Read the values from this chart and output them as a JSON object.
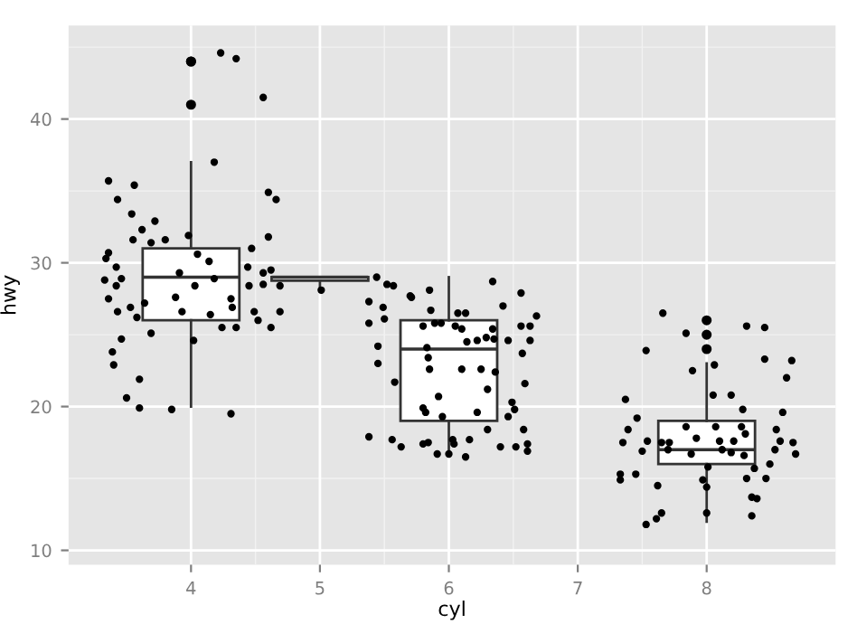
{
  "chart_data": {
    "type": "box",
    "xlabel": "cyl",
    "ylabel": "hwy",
    "x": [
      4,
      5,
      6,
      8
    ],
    "boxes": [
      {
        "low": 20,
        "q1": 26,
        "median": 29,
        "q3": 31,
        "high": 37,
        "outliers": [
          44,
          44,
          41
        ]
      },
      {
        "low": 28,
        "q1": 28.75,
        "median": 29,
        "q3": 29,
        "high": 29
      },
      {
        "low": 17,
        "q1": 19,
        "median": 24,
        "q3": 26,
        "high": 29
      },
      {
        "low": 12,
        "q1": 16,
        "median": 17,
        "q3": 19,
        "high": 23,
        "outliers": [
          26,
          25,
          24
        ]
      }
    ],
    "color": "#333333",
    "series": [
      {
        "type": "scatter",
        "color": "#000000",
        "x": [
          4.23,
          4.35,
          4.56,
          4.18,
          3.36,
          3.56,
          3.43,
          4.6,
          4.66,
          3.54,
          3.62,
          3.72,
          3.55,
          3.8,
          3.69,
          4.6,
          3.98,
          3.36,
          3.34,
          4.05,
          4.14,
          4.47,
          3.42,
          3.33,
          3.46,
          3.91,
          4.18,
          4.44,
          4.56,
          4.62,
          4.03,
          3.36,
          3.42,
          3.64,
          3.88,
          4.31,
          4.45,
          4.56,
          4.69,
          3.43,
          3.53,
          3.93,
          4.15,
          4.32,
          4.49,
          4.69,
          3.58,
          4.52,
          4.24,
          4.35,
          4.62,
          3.69,
          3.46,
          4.02,
          3.39,
          3.4,
          3.6,
          3.5,
          3.6,
          3.85,
          4.31,
          5.01,
          5.38,
          5.44,
          5.52,
          5.57,
          5.49,
          5.38,
          5.5,
          5.7,
          5.45,
          5.45,
          5.58,
          5.38,
          5.56,
          5.63,
          5.71,
          5.85,
          6.34,
          6.56,
          6.42,
          5.86,
          6.07,
          6.13,
          6.68,
          5.8,
          5.89,
          5.94,
          6.05,
          6.1,
          6.34,
          6.56,
          6.63,
          6.22,
          6.29,
          6.46,
          6.63,
          6.14,
          6.35,
          5.83,
          6.57,
          5.84,
          5.85,
          6.1,
          6.25,
          6.36,
          6.59,
          6.3,
          5.92,
          5.8,
          5.82,
          6.22,
          6.49,
          6.51,
          5.95,
          6.46,
          6.3,
          6.58,
          6.03,
          6.04,
          6.16,
          5.8,
          5.84,
          5.91,
          6.0,
          6.13,
          6.4,
          6.52,
          6.61,
          6.61,
          7.66,
          8.31,
          8.45,
          7.84,
          7.53,
          8.06,
          8.45,
          8.66,
          7.89,
          8.62,
          8.05,
          8.19,
          7.37,
          8.28,
          8.59,
          7.46,
          7.39,
          7.84,
          8.07,
          8.27,
          8.54,
          7.92,
          8.3,
          7.35,
          7.54,
          7.65,
          7.71,
          8.1,
          8.21,
          8.57,
          8.67,
          7.5,
          7.7,
          7.88,
          8.12,
          8.19,
          8.29,
          8.53,
          8.69,
          8.01,
          8.37,
          8.49,
          7.33,
          7.45,
          7.33,
          7.97,
          8.31,
          8.46,
          8.0,
          7.62,
          8.35,
          8.39,
          7.65,
          7.61,
          7.53,
          8.0,
          8.35
        ],
        "values": [
          44.6,
          44.2,
          41.5,
          37.0,
          35.7,
          35.4,
          34.4,
          34.9,
          34.4,
          33.4,
          32.3,
          32.9,
          31.6,
          31.6,
          31.4,
          31.8,
          31.9,
          30.7,
          30.3,
          30.6,
          30.1,
          31.0,
          29.7,
          28.8,
          28.9,
          29.3,
          28.9,
          29.7,
          29.3,
          29.5,
          28.4,
          27.5,
          28.4,
          27.2,
          27.6,
          27.5,
          28.4,
          28.5,
          28.4,
          26.6,
          26.9,
          26.6,
          26.4,
          26.9,
          26.6,
          26.6,
          26.2,
          26.0,
          25.5,
          25.5,
          25.5,
          25.1,
          24.7,
          24.6,
          23.8,
          22.9,
          21.9,
          20.6,
          19.9,
          19.8,
          19.5,
          28.1,
          27.3,
          29.0,
          28.5,
          28.4,
          26.9,
          25.8,
          26.1,
          27.7,
          24.2,
          23.0,
          21.7,
          17.9,
          17.7,
          17.2,
          27.6,
          28.1,
          28.7,
          27.9,
          27.0,
          26.7,
          26.5,
          26.5,
          26.3,
          25.6,
          25.8,
          25.8,
          25.6,
          25.4,
          25.4,
          25.6,
          25.6,
          24.6,
          24.8,
          24.6,
          24.6,
          24.5,
          24.7,
          24.1,
          23.7,
          23.4,
          22.6,
          22.6,
          22.6,
          22.4,
          21.6,
          21.2,
          20.7,
          19.9,
          19.6,
          19.6,
          20.3,
          19.8,
          19.3,
          19.3,
          18.4,
          18.4,
          17.7,
          17.4,
          17.7,
          17.4,
          17.5,
          16.7,
          16.7,
          16.5,
          17.2,
          17.2,
          17.4,
          16.9,
          26.5,
          25.6,
          25.5,
          25.1,
          23.9,
          22.9,
          23.3,
          23.2,
          22.5,
          22.0,
          20.8,
          20.8,
          20.5,
          19.8,
          19.6,
          19.2,
          18.4,
          18.6,
          18.6,
          18.6,
          18.4,
          17.8,
          18.1,
          17.5,
          17.6,
          17.5,
          17.5,
          17.6,
          17.6,
          17.6,
          17.5,
          16.9,
          17.0,
          16.7,
          17.0,
          16.8,
          16.6,
          17.0,
          16.7,
          15.8,
          15.7,
          16.0,
          15.3,
          15.3,
          14.9,
          14.9,
          15.0,
          15.0,
          14.4,
          14.5,
          13.7,
          13.6,
          12.6,
          12.2,
          11.8,
          12.6,
          12.4
        ]
      }
    ],
    "xlim": [
      3.05,
      9.0
    ],
    "ylim": [
      9.0,
      46.5
    ],
    "xticks": [
      4,
      5,
      6,
      7,
      8
    ],
    "yticks": [
      10,
      20,
      30,
      40
    ],
    "grid": true,
    "marker": "circle"
  }
}
